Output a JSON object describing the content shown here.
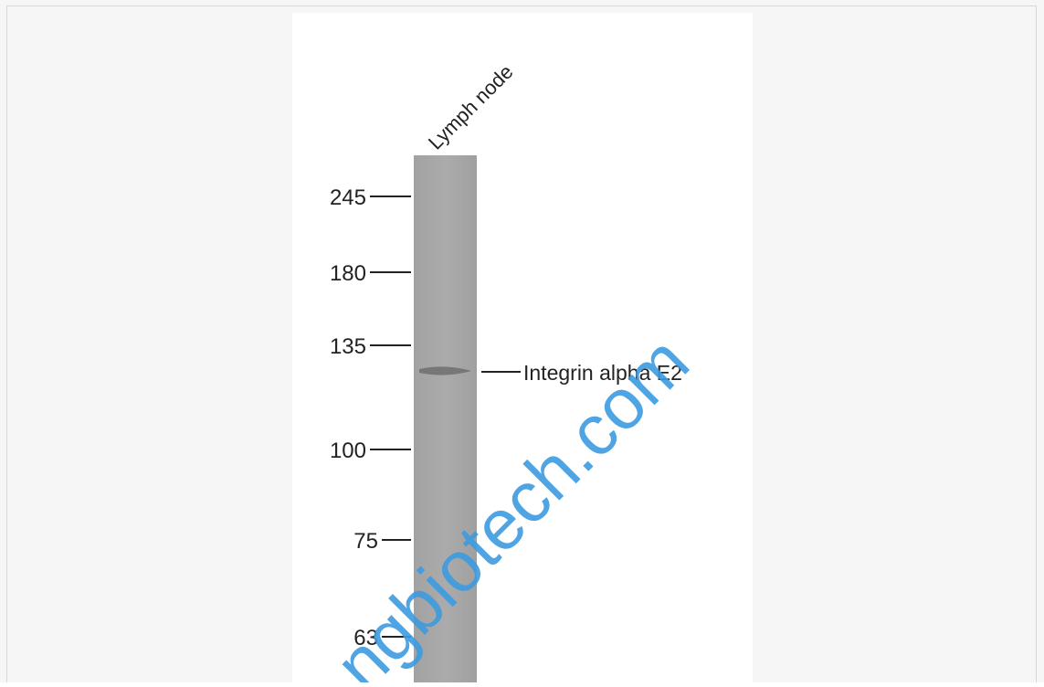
{
  "lane_label": "Lymph node",
  "markers": [
    245,
    180,
    135,
    100,
    75,
    63
  ],
  "band_label": "Integrin alpha E2",
  "watermark": "ngbiotech.com"
}
